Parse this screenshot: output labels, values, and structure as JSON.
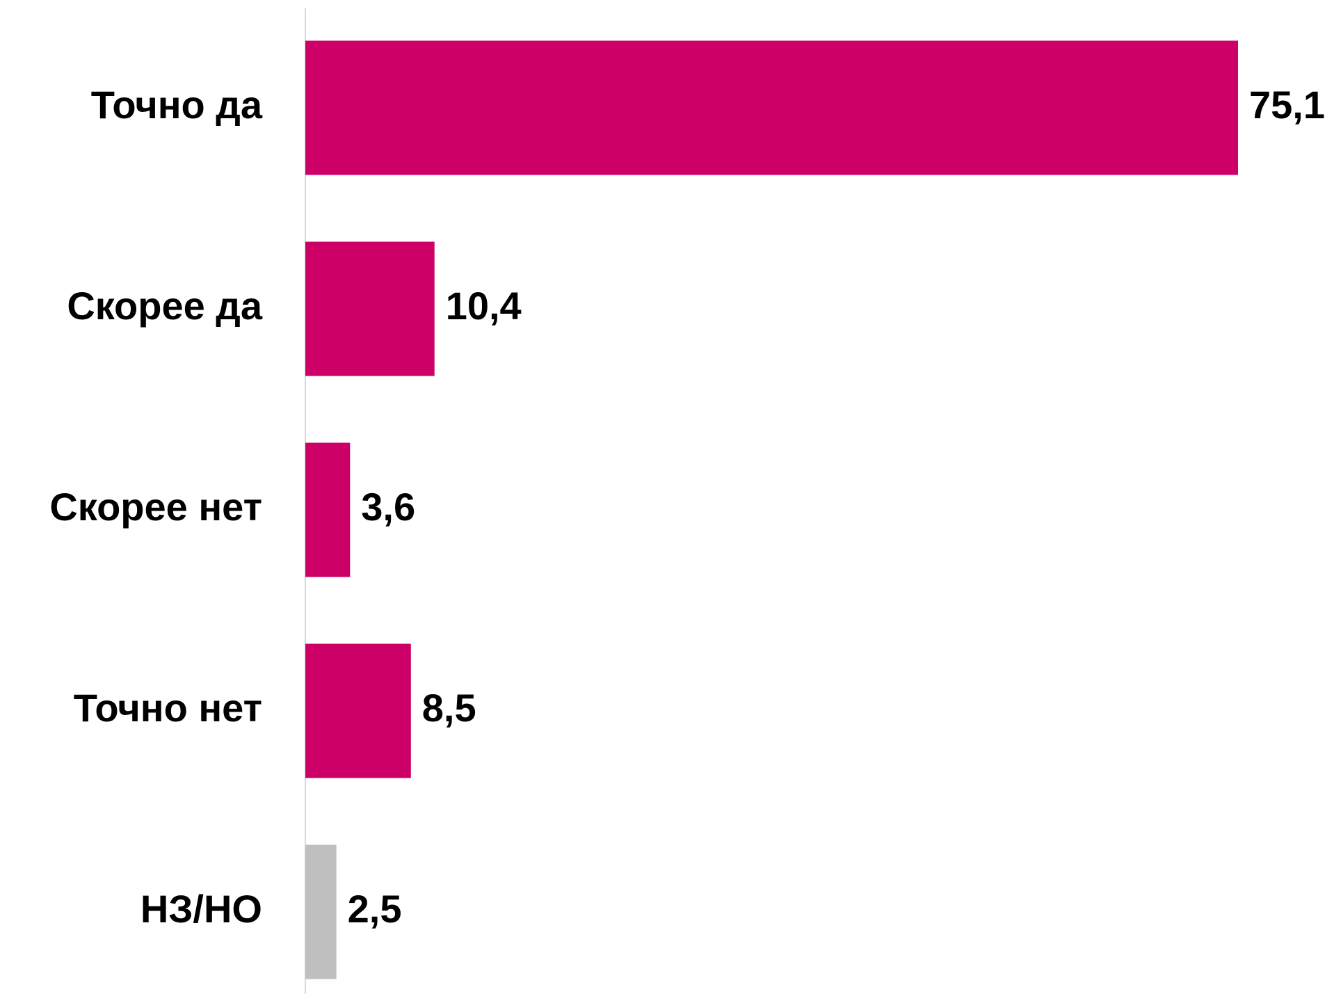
{
  "chart_data": {
    "type": "bar",
    "orientation": "horizontal",
    "categories": [
      "Точно да",
      "Скорее да",
      "Скорее нет",
      "Точно нет",
      "НЗ/НО"
    ],
    "values": [
      75.1,
      10.4,
      3.6,
      8.5,
      2.5
    ],
    "value_labels": [
      "75,1",
      "10,4",
      "3,6",
      "8,5",
      "2,5"
    ],
    "colors": [
      "#cc0066",
      "#cc0066",
      "#cc0066",
      "#cc0066",
      "#bfbfbf"
    ]
  }
}
